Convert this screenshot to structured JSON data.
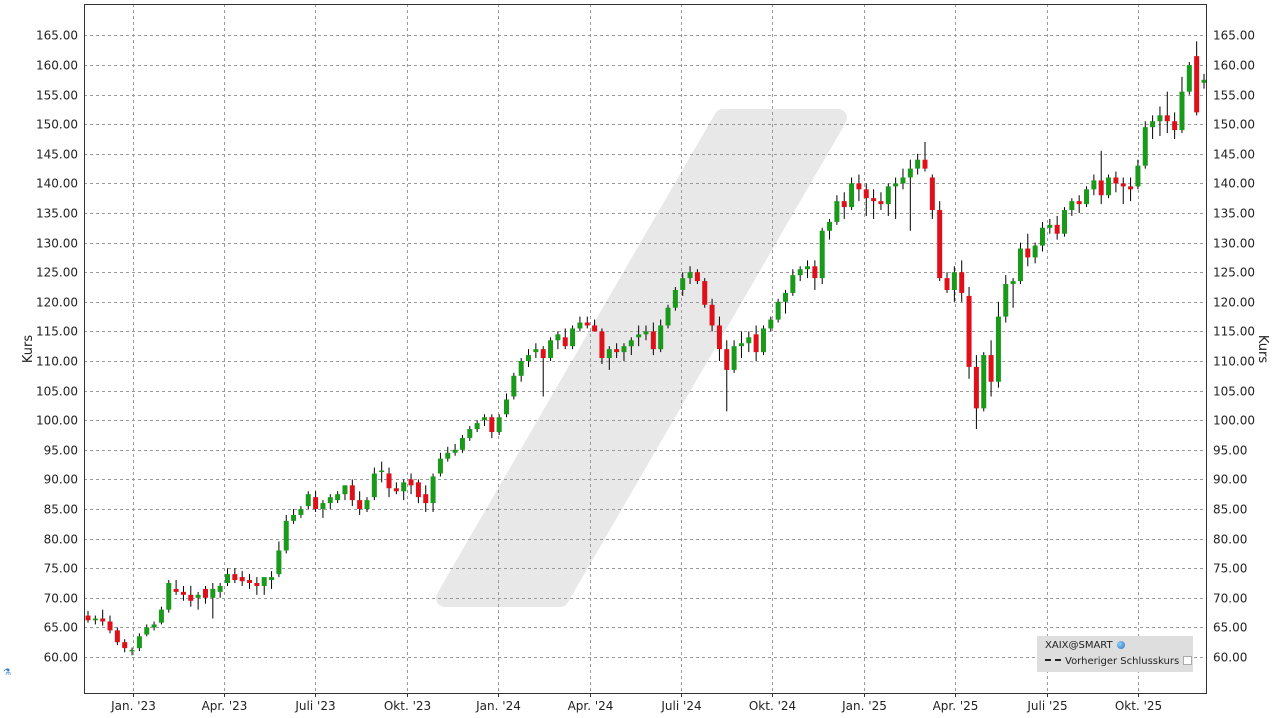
{
  "chart_data": {
    "type": "candlestick",
    "title": "",
    "ylabel_left": "Kurs",
    "ylabel_right": "Kurs",
    "ylim": [
      55,
      167
    ],
    "y_ticks": [
      "60.00",
      "65.00",
      "70.00",
      "75.00",
      "80.00",
      "85.00",
      "90.00",
      "95.00",
      "100.00",
      "105.00",
      "110.00",
      "115.00",
      "120.00",
      "125.00",
      "130.00",
      "135.00",
      "140.00",
      "145.00",
      "150.00",
      "155.00",
      "160.00",
      "165.00"
    ],
    "x_ticks": [
      "Jan. '23",
      "Apr. '23",
      "Juli '23",
      "Okt. '23",
      "Jan. '24",
      "Apr. '24",
      "Juli '24",
      "Okt. '24",
      "Jan. '25",
      "Apr. '25",
      "Juli '25",
      "Okt. '25"
    ],
    "grid": true,
    "up_color": "#1a9a1a",
    "down_color": "#e0101a",
    "candles": [
      [
        67.0,
        67.8,
        65.8,
        66.2
      ],
      [
        66.2,
        67.0,
        65.5,
        66.5
      ],
      [
        66.5,
        68.0,
        65.3,
        66.0
      ],
      [
        66.0,
        67.0,
        64.0,
        64.5
      ],
      [
        64.5,
        65.0,
        62.0,
        62.5
      ],
      [
        62.5,
        63.0,
        60.8,
        61.5
      ],
      [
        61.0,
        61.6,
        60.3,
        61.2
      ],
      [
        61.5,
        64.0,
        61.0,
        63.5
      ],
      [
        63.8,
        65.5,
        63.5,
        65.0
      ],
      [
        65.0,
        66.0,
        64.5,
        65.5
      ],
      [
        65.8,
        68.5,
        65.5,
        68.0
      ],
      [
        68.0,
        73.0,
        67.5,
        72.5
      ],
      [
        71.5,
        73.0,
        70.5,
        71.0
      ],
      [
        71.0,
        72.0,
        69.5,
        70.5
      ],
      [
        70.5,
        72.0,
        68.5,
        69.5
      ],
      [
        70.0,
        71.0,
        68.0,
        70.5
      ],
      [
        71.5,
        72.0,
        69.0,
        70.0
      ],
      [
        70.0,
        72.5,
        66.5,
        71.5
      ],
      [
        71.0,
        72.5,
        70.0,
        72.0
      ],
      [
        72.5,
        75.0,
        72.0,
        74.0
      ],
      [
        74.0,
        75.0,
        72.5,
        73.0
      ],
      [
        73.5,
        74.5,
        72.0,
        72.8
      ],
      [
        73.0,
        74.0,
        71.5,
        72.5
      ],
      [
        72.5,
        73.5,
        70.5,
        72.0
      ],
      [
        72.0,
        73.0,
        70.5,
        73.5
      ],
      [
        73.0,
        74.5,
        71.5,
        73.5
      ],
      [
        74.0,
        79.5,
        73.5,
        78.0
      ],
      [
        78.0,
        84.0,
        77.5,
        83.0
      ],
      [
        83.0,
        85.0,
        82.5,
        84.0
      ],
      [
        84.0,
        85.5,
        83.5,
        85.0
      ],
      [
        85.5,
        88.0,
        85.0,
        87.5
      ],
      [
        87.0,
        88.0,
        84.5,
        85.0
      ],
      [
        85.0,
        86.5,
        83.5,
        86.0
      ],
      [
        86.0,
        87.5,
        85.0,
        87.0
      ],
      [
        86.5,
        88.0,
        86.0,
        87.5
      ],
      [
        87.5,
        89.0,
        86.5,
        89.0
      ],
      [
        89.0,
        90.0,
        85.5,
        86.5
      ],
      [
        86.5,
        88.0,
        84.0,
        85.0
      ],
      [
        85.0,
        87.0,
        84.5,
        86.5
      ],
      [
        87.0,
        92.0,
        86.5,
        91.0
      ],
      [
        91.5,
        93.0,
        89.5,
        91.5
      ],
      [
        91.0,
        92.0,
        87.0,
        88.5
      ],
      [
        88.5,
        89.5,
        87.5,
        88.0
      ],
      [
        88.0,
        90.0,
        86.5,
        89.5
      ],
      [
        90.0,
        91.0,
        87.5,
        89.0
      ],
      [
        89.5,
        90.0,
        86.0,
        87.0
      ],
      [
        87.5,
        89.0,
        84.5,
        86.0
      ],
      [
        86.0,
        91.0,
        84.5,
        90.5
      ],
      [
        91.0,
        94.5,
        90.5,
        93.5
      ],
      [
        93.5,
        95.5,
        93.0,
        94.5
      ],
      [
        94.5,
        96.0,
        94.0,
        95.0
      ],
      [
        95.0,
        97.5,
        94.5,
        97.0
      ],
      [
        97.0,
        99.0,
        96.5,
        98.5
      ],
      [
        98.5,
        100.0,
        98.0,
        99.5
      ],
      [
        100.0,
        101.0,
        99.0,
        100.5
      ],
      [
        100.5,
        101.0,
        97.0,
        98.0
      ],
      [
        98.0,
        101.0,
        97.5,
        100.5
      ],
      [
        101.0,
        104.5,
        100.5,
        103.5
      ],
      [
        104.0,
        108.0,
        103.5,
        107.5
      ],
      [
        107.5,
        110.5,
        106.5,
        110.0
      ],
      [
        110.0,
        112.0,
        109.0,
        111.0
      ],
      [
        111.5,
        113.0,
        110.5,
        112.0
      ],
      [
        112.0,
        112.5,
        104.0,
        110.5
      ],
      [
        110.5,
        114.0,
        110.0,
        113.5
      ],
      [
        113.5,
        115.0,
        112.0,
        114.5
      ],
      [
        114.0,
        115.5,
        112.0,
        112.5
      ],
      [
        112.5,
        116.0,
        112.0,
        115.5
      ],
      [
        115.5,
        117.5,
        115.0,
        116.5
      ],
      [
        116.5,
        117.5,
        115.5,
        116.0
      ],
      [
        116.0,
        117.0,
        115.0,
        115.0
      ],
      [
        115.0,
        115.5,
        109.5,
        110.5
      ],
      [
        110.5,
        112.5,
        108.5,
        112.0
      ],
      [
        112.0,
        113.0,
        110.5,
        111.5
      ],
      [
        111.5,
        113.0,
        110.0,
        112.5
      ],
      [
        112.5,
        114.0,
        111.0,
        113.5
      ],
      [
        114.0,
        116.0,
        112.5,
        114.5
      ],
      [
        114.5,
        116.0,
        113.5,
        115.0
      ],
      [
        115.0,
        116.5,
        111.0,
        112.0
      ],
      [
        112.0,
        117.0,
        111.5,
        116.0
      ],
      [
        116.0,
        119.5,
        115.5,
        119.0
      ],
      [
        119.0,
        122.5,
        118.5,
        122.0
      ],
      [
        122.0,
        125.0,
        121.0,
        124.0
      ],
      [
        124.0,
        126.0,
        123.0,
        125.0
      ],
      [
        125.0,
        125.5,
        123.0,
        123.5
      ],
      [
        123.5,
        124.0,
        119.0,
        119.5
      ],
      [
        119.5,
        120.5,
        115.0,
        116.0
      ],
      [
        116.0,
        117.5,
        110.0,
        112.0
      ],
      [
        112.0,
        113.5,
        101.5,
        108.5
      ],
      [
        108.5,
        113.5,
        108.0,
        112.5
      ],
      [
        112.5,
        115.0,
        110.5,
        113.0
      ],
      [
        113.0,
        115.0,
        111.5,
        114.0
      ],
      [
        114.5,
        116.0,
        110.0,
        111.5
      ],
      [
        111.5,
        116.0,
        111.0,
        115.5
      ],
      [
        115.5,
        117.5,
        115.0,
        117.0
      ],
      [
        117.0,
        120.5,
        116.5,
        120.0
      ],
      [
        120.0,
        122.0,
        118.0,
        121.5
      ],
      [
        121.5,
        125.5,
        121.0,
        124.5
      ],
      [
        124.5,
        126.0,
        123.5,
        125.5
      ],
      [
        125.5,
        127.0,
        124.0,
        126.0
      ],
      [
        126.0,
        127.0,
        122.0,
        124.0
      ],
      [
        124.0,
        132.5,
        123.0,
        132.0
      ],
      [
        132.0,
        134.0,
        130.5,
        133.5
      ],
      [
        133.5,
        138.0,
        133.0,
        137.0
      ],
      [
        137.0,
        138.5,
        134.0,
        136.0
      ],
      [
        136.0,
        141.0,
        135.5,
        140.0
      ],
      [
        140.0,
        141.5,
        137.0,
        139.0
      ],
      [
        139.0,
        140.0,
        134.5,
        137.5
      ],
      [
        137.5,
        139.0,
        134.0,
        137.0
      ],
      [
        137.0,
        138.5,
        135.5,
        136.5
      ],
      [
        136.5,
        140.0,
        134.5,
        139.5
      ],
      [
        139.5,
        141.0,
        134.0,
        140.0
      ],
      [
        140.0,
        142.5,
        139.0,
        141.0
      ],
      [
        141.0,
        144.0,
        132.0,
        142.5
      ],
      [
        142.5,
        145.0,
        141.5,
        144.0
      ],
      [
        144.0,
        147.0,
        142.0,
        142.5
      ],
      [
        141.0,
        141.5,
        134.0,
        135.5
      ],
      [
        135.5,
        137.0,
        123.5,
        124.0
      ],
      [
        124.0,
        125.0,
        121.5,
        122.0
      ],
      [
        122.0,
        126.0,
        120.0,
        125.0
      ],
      [
        125.0,
        127.0,
        120.0,
        121.5
      ],
      [
        121.0,
        122.5,
        107.0,
        109.0
      ],
      [
        109.0,
        111.0,
        98.5,
        102.0
      ],
      [
        102.0,
        111.5,
        101.5,
        111.0
      ],
      [
        111.0,
        113.5,
        104.0,
        106.5
      ],
      [
        106.5,
        120.0,
        105.5,
        117.5
      ],
      [
        117.5,
        124.5,
        116.5,
        123.0
      ],
      [
        123.0,
        124.0,
        119.0,
        123.5
      ],
      [
        123.5,
        130.0,
        123.0,
        129.0
      ],
      [
        129.0,
        131.5,
        126.0,
        127.5
      ],
      [
        127.5,
        130.0,
        126.5,
        129.5
      ],
      [
        129.5,
        133.5,
        128.5,
        132.5
      ],
      [
        132.5,
        134.0,
        131.5,
        133.0
      ],
      [
        133.0,
        134.5,
        130.5,
        131.5
      ],
      [
        131.5,
        136.0,
        131.0,
        135.5
      ],
      [
        135.5,
        137.5,
        134.5,
        137.0
      ],
      [
        137.0,
        138.0,
        135.0,
        136.5
      ],
      [
        136.5,
        139.5,
        136.0,
        139.0
      ],
      [
        139.0,
        141.5,
        138.0,
        140.5
      ],
      [
        140.5,
        145.5,
        136.5,
        138.0
      ],
      [
        138.0,
        141.5,
        137.5,
        141.0
      ],
      [
        141.0,
        142.0,
        138.5,
        140.0
      ],
      [
        140.0,
        141.0,
        136.5,
        139.5
      ],
      [
        139.5,
        141.0,
        137.0,
        139.0
      ],
      [
        139.5,
        144.0,
        139.0,
        143.0
      ],
      [
        143.0,
        150.5,
        142.5,
        149.5
      ],
      [
        149.5,
        151.5,
        147.5,
        150.5
      ],
      [
        150.5,
        153.0,
        148.0,
        151.5
      ],
      [
        151.5,
        155.5,
        148.5,
        150.5
      ],
      [
        150.5,
        152.0,
        147.5,
        149.0
      ],
      [
        149.0,
        158.0,
        148.5,
        155.5
      ],
      [
        155.5,
        160.5,
        155.0,
        160.0
      ],
      [
        161.5,
        164.0,
        151.5,
        152.0
      ],
      [
        157.0,
        158.5,
        156.0,
        157.5
      ]
    ]
  },
  "legend": {
    "title": "XAIX@SMART",
    "item": "Vorheriger Schlusskurs",
    "globe_icon": "globe-icon",
    "dash_icon": "dash-line-icon",
    "square_icon": "checkbox-square-icon"
  }
}
